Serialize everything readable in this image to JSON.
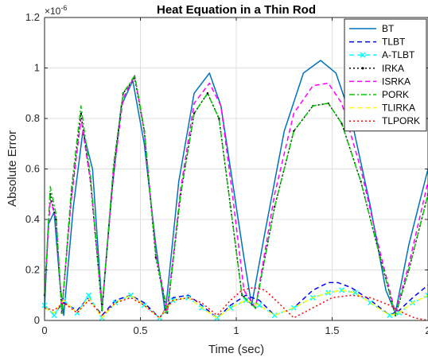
{
  "chart_data": {
    "type": "line",
    "title": "Heat Equation in a Thin Rod",
    "xlabel": "Time (sec)",
    "ylabel": "Absolute Error",
    "y_exponent_label": "×10",
    "y_exponent_power": "-6",
    "xlim": [
      0,
      2
    ],
    "ylim": [
      0,
      1.2
    ],
    "xticks": [
      0,
      0.5,
      1,
      1.5,
      2
    ],
    "xtick_labels": [
      "0",
      "0.5",
      "1",
      "1.5",
      "2"
    ],
    "yticks": [
      0,
      0.2,
      0.4,
      0.6,
      0.8,
      1,
      1.2
    ],
    "ytick_labels": [
      "0",
      "0.2",
      "0.4",
      "0.6",
      "0.8",
      "1",
      "1.2"
    ],
    "grid": true,
    "legend_position": "top-right",
    "series": [
      {
        "name": "BT",
        "color": "#0072BD",
        "dash": "solid",
        "marker": "none",
        "x": [
          0,
          0.02,
          0.05,
          0.08,
          0.1,
          0.15,
          0.2,
          0.25,
          0.3,
          0.35,
          0.4,
          0.46,
          0.52,
          0.58,
          0.63,
          0.7,
          0.78,
          0.86,
          0.92,
          0.98,
          1.04,
          1.08,
          1.15,
          1.25,
          1.35,
          1.44,
          1.52,
          1.6,
          1.7,
          1.78,
          1.83,
          1.9,
          2
        ],
        "y": [
          0.05,
          0.38,
          0.43,
          0.15,
          0.02,
          0.45,
          0.75,
          0.6,
          0.05,
          0.5,
          0.85,
          0.95,
          0.7,
          0.3,
          0.03,
          0.55,
          0.9,
          0.98,
          0.85,
          0.55,
          0.25,
          0.06,
          0.35,
          0.75,
          0.98,
          1.03,
          0.98,
          0.8,
          0.45,
          0.12,
          0.03,
          0.3,
          0.6
        ]
      },
      {
        "name": "TLBT",
        "color": "#0000FF",
        "dash": "dashed",
        "marker": "none",
        "x": [
          0,
          0.05,
          0.1,
          0.17,
          0.23,
          0.3,
          0.37,
          0.45,
          0.52,
          0.6,
          0.67,
          0.75,
          0.82,
          0.9,
          0.97,
          1.05,
          1.12,
          1.2,
          1.3,
          1.4,
          1.48,
          1.53,
          1.6,
          1.7,
          1.8,
          1.85,
          1.92,
          2
        ],
        "y": [
          0.05,
          0.03,
          0.07,
          0.04,
          0.09,
          0.02,
          0.08,
          0.1,
          0.07,
          0.01,
          0.09,
          0.1,
          0.06,
          0.01,
          0.06,
          0.1,
          0.08,
          0.02,
          0.05,
          0.12,
          0.15,
          0.15,
          0.13,
          0.08,
          0.02,
          0.04,
          0.09,
          0.14
        ]
      },
      {
        "name": "A-TLBT",
        "color": "#00FFFF",
        "dash": "dashed",
        "marker": "x",
        "x": [
          0,
          0.05,
          0.1,
          0.17,
          0.23,
          0.3,
          0.37,
          0.45,
          0.52,
          0.6,
          0.67,
          0.75,
          0.82,
          0.9,
          0.97,
          1.05,
          1.12,
          1.2,
          1.3,
          1.4,
          1.48,
          1.55,
          1.62,
          1.7,
          1.8,
          1.85,
          1.92,
          2
        ],
        "y": [
          0.06,
          0.02,
          0.08,
          0.03,
          0.1,
          0.01,
          0.07,
          0.1,
          0.06,
          0.01,
          0.08,
          0.09,
          0.05,
          0.01,
          0.05,
          0.08,
          0.06,
          0.02,
          0.05,
          0.09,
          0.11,
          0.12,
          0.11,
          0.07,
          0.02,
          0.03,
          0.07,
          0.1
        ]
      },
      {
        "name": "IRKA",
        "color": "#000000",
        "dash": "dotted",
        "marker": "dot",
        "x": [
          0,
          0.03,
          0.06,
          0.09,
          0.14,
          0.19,
          0.24,
          0.3,
          0.36,
          0.41,
          0.47,
          0.52,
          0.58,
          0.64,
          0.71,
          0.78,
          0.85,
          0.91,
          0.97,
          1.03,
          1.1,
          1.2,
          1.3,
          1.4,
          1.48,
          1.55,
          1.65,
          1.75,
          1.83,
          1.9,
          2
        ],
        "y": [
          0.1,
          0.5,
          0.4,
          0.03,
          0.5,
          0.82,
          0.55,
          0.04,
          0.6,
          0.9,
          0.96,
          0.75,
          0.25,
          0.03,
          0.5,
          0.82,
          0.9,
          0.8,
          0.45,
          0.1,
          0.05,
          0.45,
          0.75,
          0.85,
          0.86,
          0.78,
          0.55,
          0.25,
          0.02,
          0.2,
          0.5
        ]
      },
      {
        "name": "ISRKA",
        "color": "#FF00FF",
        "dash": "dashed",
        "marker": "none",
        "x": [
          0,
          0.03,
          0.06,
          0.09,
          0.14,
          0.19,
          0.24,
          0.3,
          0.36,
          0.41,
          0.47,
          0.52,
          0.58,
          0.64,
          0.71,
          0.78,
          0.86,
          0.92,
          0.98,
          1.04,
          1.1,
          1.2,
          1.3,
          1.4,
          1.48,
          1.55,
          1.65,
          1.75,
          1.83,
          1.9,
          2
        ],
        "y": [
          0.1,
          0.48,
          0.4,
          0.04,
          0.48,
          0.8,
          0.55,
          0.05,
          0.58,
          0.88,
          0.97,
          0.75,
          0.27,
          0.04,
          0.52,
          0.86,
          0.94,
          0.85,
          0.5,
          0.12,
          0.05,
          0.5,
          0.82,
          0.93,
          0.94,
          0.86,
          0.6,
          0.27,
          0.03,
          0.22,
          0.55
        ]
      },
      {
        "name": "PORK",
        "color": "#00CC00",
        "dash": "dashdot",
        "marker": "none",
        "x": [
          0,
          0.03,
          0.06,
          0.09,
          0.14,
          0.19,
          0.24,
          0.3,
          0.36,
          0.41,
          0.47,
          0.52,
          0.58,
          0.64,
          0.71,
          0.78,
          0.85,
          0.91,
          0.97,
          1.03,
          1.1,
          1.2,
          1.3,
          1.4,
          1.48,
          1.55,
          1.65,
          1.75,
          1.83,
          1.9,
          2
        ],
        "y": [
          0.1,
          0.53,
          0.42,
          0.03,
          0.52,
          0.85,
          0.57,
          0.04,
          0.62,
          0.9,
          0.97,
          0.76,
          0.26,
          0.03,
          0.5,
          0.82,
          0.9,
          0.8,
          0.45,
          0.1,
          0.05,
          0.45,
          0.75,
          0.85,
          0.86,
          0.78,
          0.55,
          0.25,
          0.02,
          0.2,
          0.5
        ]
      },
      {
        "name": "TLIRKA",
        "color": "#FFFF00",
        "dash": "dashed",
        "marker": "none",
        "x": [
          0,
          0.05,
          0.1,
          0.17,
          0.23,
          0.3,
          0.37,
          0.45,
          0.52,
          0.6,
          0.67,
          0.75,
          0.82,
          0.9,
          0.97,
          1.05,
          1.12,
          1.2,
          1.3,
          1.4,
          1.48,
          1.55,
          1.62,
          1.7,
          1.8,
          1.85,
          1.92,
          2
        ],
        "y": [
          0.05,
          0.03,
          0.08,
          0.03,
          0.09,
          0.01,
          0.07,
          0.1,
          0.06,
          0.01,
          0.08,
          0.09,
          0.05,
          0.01,
          0.05,
          0.08,
          0.06,
          0.02,
          0.05,
          0.09,
          0.11,
          0.12,
          0.11,
          0.07,
          0.02,
          0.03,
          0.07,
          0.1
        ]
      },
      {
        "name": "TLPORK",
        "color": "#FF0000",
        "dash": "dotted",
        "marker": "none",
        "x": [
          0,
          0.05,
          0.1,
          0.17,
          0.23,
          0.3,
          0.37,
          0.45,
          0.52,
          0.6,
          0.67,
          0.75,
          0.82,
          0.9,
          0.97,
          1.03,
          1.09,
          1.15,
          1.22,
          1.3,
          1.4,
          1.5,
          1.6,
          1.7,
          1.8,
          1.87,
          1.93,
          2
        ],
        "y": [
          0.05,
          0.04,
          0.07,
          0.03,
          0.08,
          0.02,
          0.07,
          0.09,
          0.06,
          0.01,
          0.08,
          0.09,
          0.07,
          0.02,
          0.08,
          0.12,
          0.13,
          0.12,
          0.07,
          0.01,
          0.05,
          0.09,
          0.1,
          0.09,
          0.06,
          0.03,
          0.01,
          0.0
        ]
      }
    ]
  }
}
